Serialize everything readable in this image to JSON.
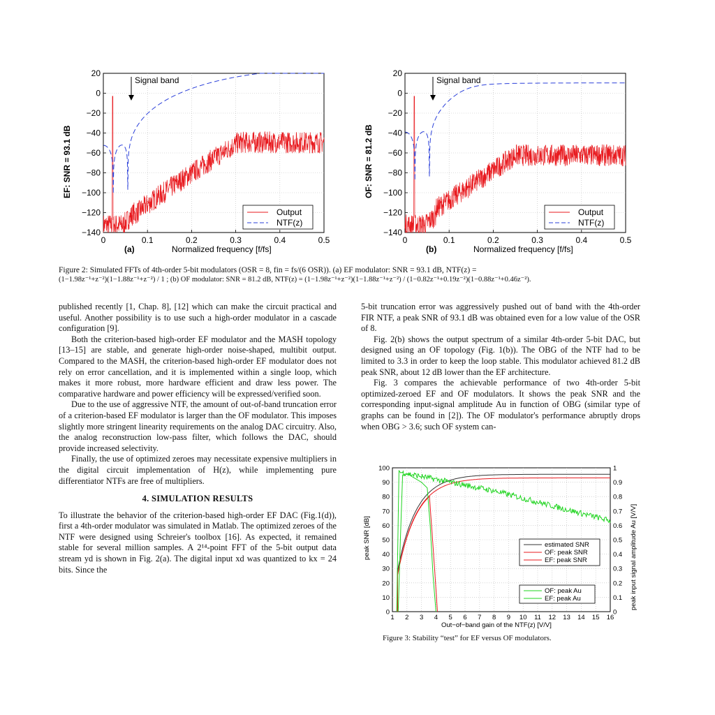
{
  "fig2": {
    "panel_a": {
      "ylabel": "EF:  SNR = 93.1 dB",
      "xlabel": "Normalized frequency   [f/fs]",
      "sublabel": "(a)",
      "annotation": "Signal band",
      "legend": [
        "Output",
        "NTF(z)"
      ],
      "yticks": [
        "20",
        "0",
        "−20",
        "−40",
        "−60",
        "−80",
        "−100",
        "−120",
        "−140"
      ],
      "xticks": [
        "0",
        "0.1",
        "0.2",
        "0.3",
        "0.4",
        "0.5"
      ]
    },
    "panel_b": {
      "ylabel": "OF:  SNR = 81.2 dB",
      "xlabel": "Normalized frequency   [f/fs]",
      "sublabel": "(b)",
      "annotation": "Signal band",
      "legend": [
        "Output",
        "NTF(z)"
      ],
      "yticks": [
        "20",
        "0",
        "−20",
        "−40",
        "−60",
        "−80",
        "−100",
        "−120",
        "−140"
      ],
      "xticks": [
        "0",
        "0.1",
        "0.2",
        "0.3",
        "0.4",
        "0.5"
      ]
    },
    "caption_line1": "Figure 2: Simulated FFTs of 4th-order 5-bit modulators (OSR = 8, fin = fs/(6 OSR)). (a) EF modulator: SNR = 93.1 dB, NTF(z) =",
    "caption_line2": "(1−1.98z⁻¹+z⁻²)(1−1.88z⁻¹+z⁻²) / 1 ;  (b) OF modulator: SNR = 81.2 dB, NTF(z) = (1−1.98z⁻¹+z⁻²)(1−1.88z⁻¹+z⁻²) / (1−0.82z⁻¹+0.19z⁻²)(1−0.88z⁻¹+0.46z⁻²)."
  },
  "left_col": {
    "p1": "published recently [1, Chap. 8], [12] which can make the circuit practical and useful. Another possibility is to use such a high-order modulator in a cascade configuration [9].",
    "p2": "Both the criterion-based high-order EF modulator and the MASH topology [13–15] are stable, and generate high-order noise-shaped, multibit output. Compared to the MASH, the criterion-based high-order EF modulator does not rely on error cancellation, and it is implemented within a single loop, which makes it more robust, more hardware efficient and draw less power. The comparative hardware and power efficiency will be expressed/verified soon.",
    "p3": "Due to the use of aggressive NTF, the amount of out-of-band truncation error of a criterion-based EF modulator is larger than the OF modulator. This imposes slightly more stringent linearity requirements on the analog DAC circuitry. Also, the analog reconstruction low-pass filter, which follows the DAC, should provide increased selectivity.",
    "p4": "Finally, the use of optimized zeroes may necessitate expensive multipliers in the digital circuit implementation of H(z), while implementing pure differentiator NTFs are free of multipliers.",
    "section": "4.  SIMULATION RESULTS",
    "p5": "To illustrate the behavior of the criterion-based high-order EF DAC (Fig.1(d)), first a 4th-order modulator was simulated in Matlab. The optimized zeroes of the NTF were designed using Schreier's toolbox [16]. As expected, it remained stable for several million samples. A 2¹⁴-point FFT of the 5-bit output data stream yd is shown in Fig. 2(a). The digital input xd was quantized to kx = 24 bits. Since the"
  },
  "right_col": {
    "p1": "5-bit truncation error was aggressively pushed out of band with the 4th-order FIR NTF, a peak SNR of 93.1 dB was obtained even for a low value of the OSR of 8.",
    "p2": "Fig. 2(b) shows the output spectrum of a similar 4th-order 5-bit DAC, but designed using an OF topology (Fig. 1(b)). The OBG of the NTF had to be limited to 3.3 in order to keep the loop stable. This modulator achieved 81.2 dB peak SNR, about 12 dB lower than the EF architecture.",
    "p3": "Fig. 3 compares the achievable performance of two 4th-order 5-bit optimized-zeroed EF and OF modulators. It shows the peak SNR and the corresponding input-signal amplitude Au in function of OBG (similar type of graphs can be found in [2]). The OF modulator's performance abruptly drops when OBG > 3.6; such OF system can-"
  },
  "fig3": {
    "ylabel_left": "peak SNR  [dB]",
    "ylabel_right": "peak input signal amplitude Au  [V/V]",
    "xlabel": "Out−of−band gain of the NTF(z)   [V/V]",
    "yticks_left": [
      "100",
      "90",
      "80",
      "70",
      "60",
      "50",
      "40",
      "30",
      "20",
      "10",
      "0"
    ],
    "yticks_right": [
      "1",
      "0.9",
      "0.8",
      "0.7",
      "0.6",
      "0.5",
      "0.4",
      "0.3",
      "0.2",
      "0.1",
      "0"
    ],
    "xticks": [
      "1",
      "2",
      "3",
      "4",
      "5",
      "6",
      "7",
      "8",
      "9",
      "10",
      "11",
      "12",
      "13",
      "14",
      "15",
      "16"
    ],
    "legend1": [
      "estimated SNR",
      "OF: peak SNR",
      "EF: peak SNR"
    ],
    "legend2": [
      "OF: peak Au",
      "EF: peak Au"
    ],
    "caption": "Figure 3: Stability “test” for EF versus OF modulators."
  },
  "colors": {
    "red": "#e8191e",
    "blue": "#2a3fd9",
    "green": "#1fd41f",
    "black": "#333333"
  }
}
